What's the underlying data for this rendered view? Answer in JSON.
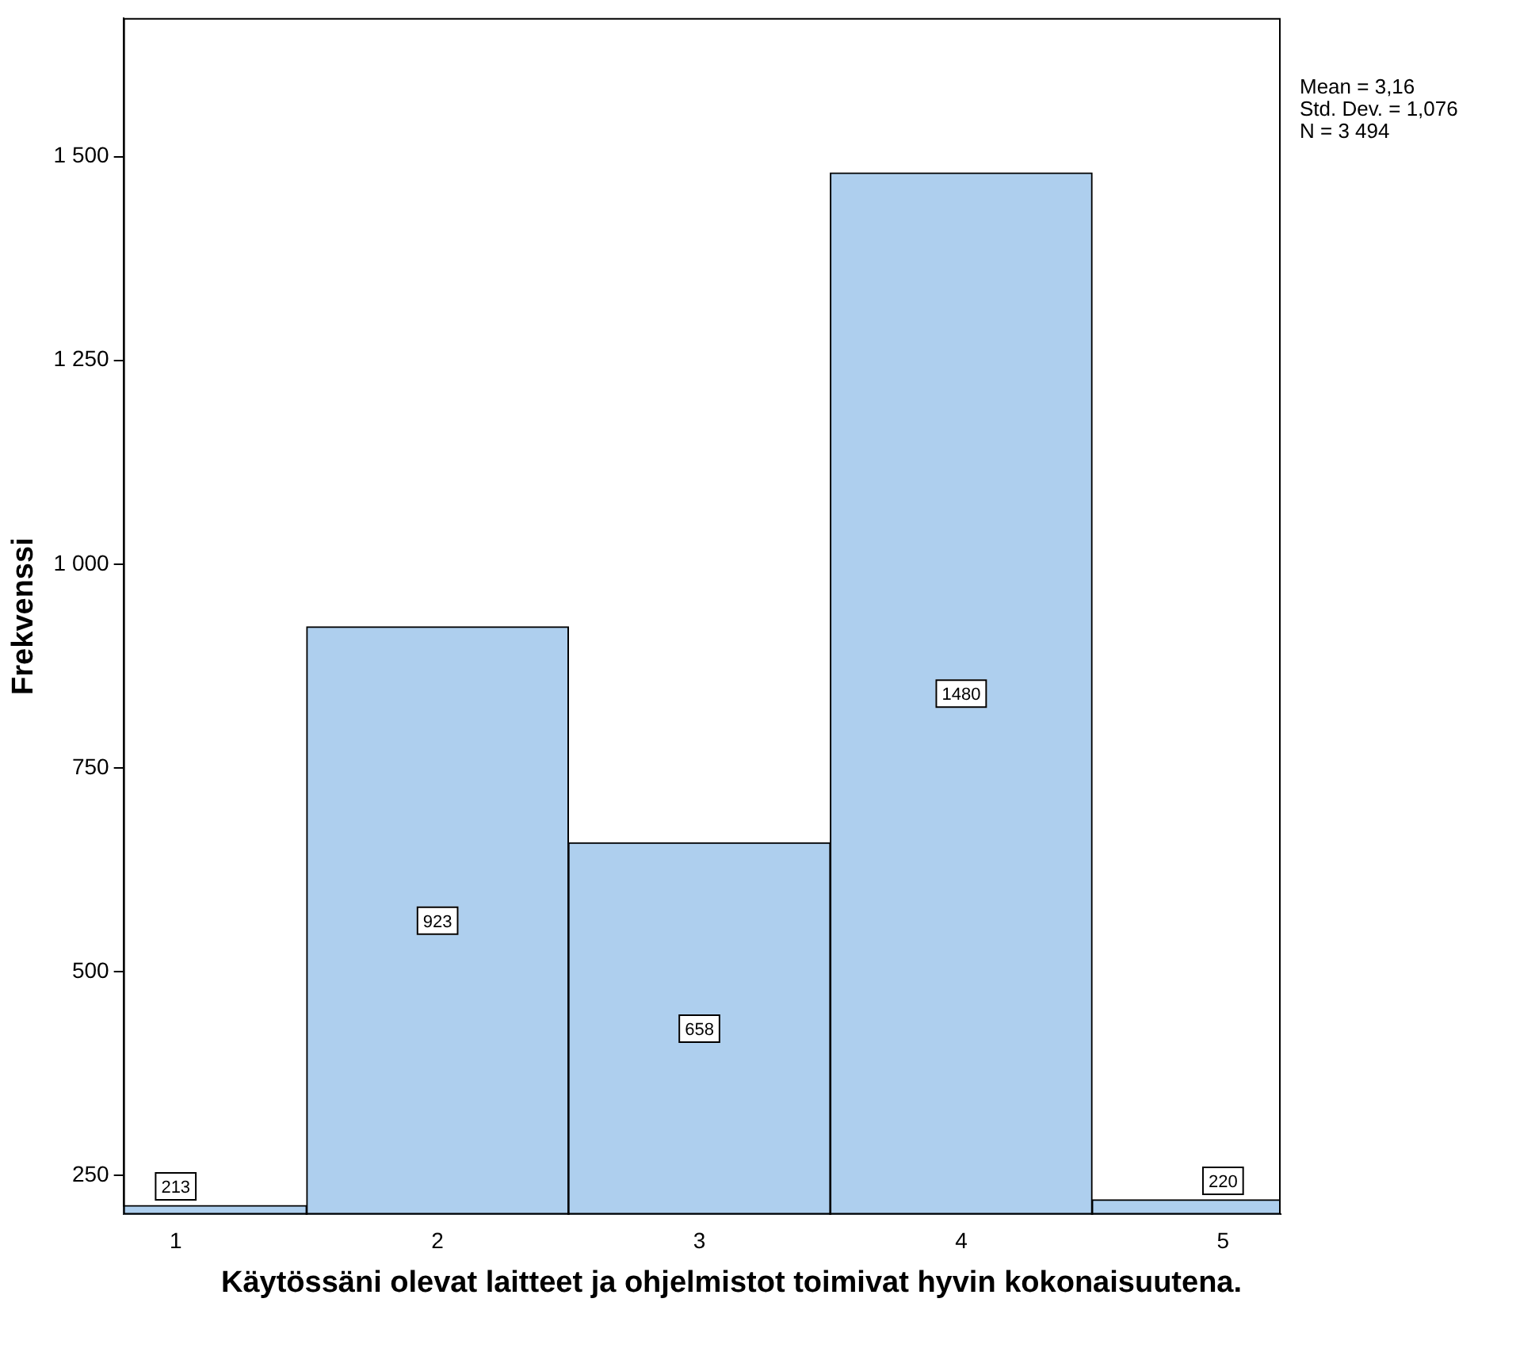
{
  "chart_data": {
    "type": "histogram",
    "xlabel": "Käytössäni olevat laitteet ja ohjelmistot toimivat hyvin kokonaisuutena.",
    "ylabel": "Frekvenssi",
    "bins": [
      0.5,
      1.5,
      2.5,
      3.5,
      4.5,
      5.5
    ],
    "values": [
      213,
      923,
      658,
      1480,
      220
    ],
    "color": "#aecfee",
    "data_labels": true,
    "xlim": [
      0.8,
      5.22
    ],
    "xticks": [
      1,
      2,
      3,
      4,
      5
    ],
    "ylim": [
      202,
      1670
    ],
    "yticks": [
      250,
      500,
      750,
      {
        "value": 1000,
        "label": "1 000"
      },
      {
        "value": 1250,
        "label": "1 250"
      },
      {
        "value": 1500,
        "label": "1 500"
      }
    ],
    "grid": false,
    "legend": false,
    "annotations": [
      "Mean = 3,16",
      "Std. Dev. = 1,076",
      "N = 3 494"
    ]
  }
}
